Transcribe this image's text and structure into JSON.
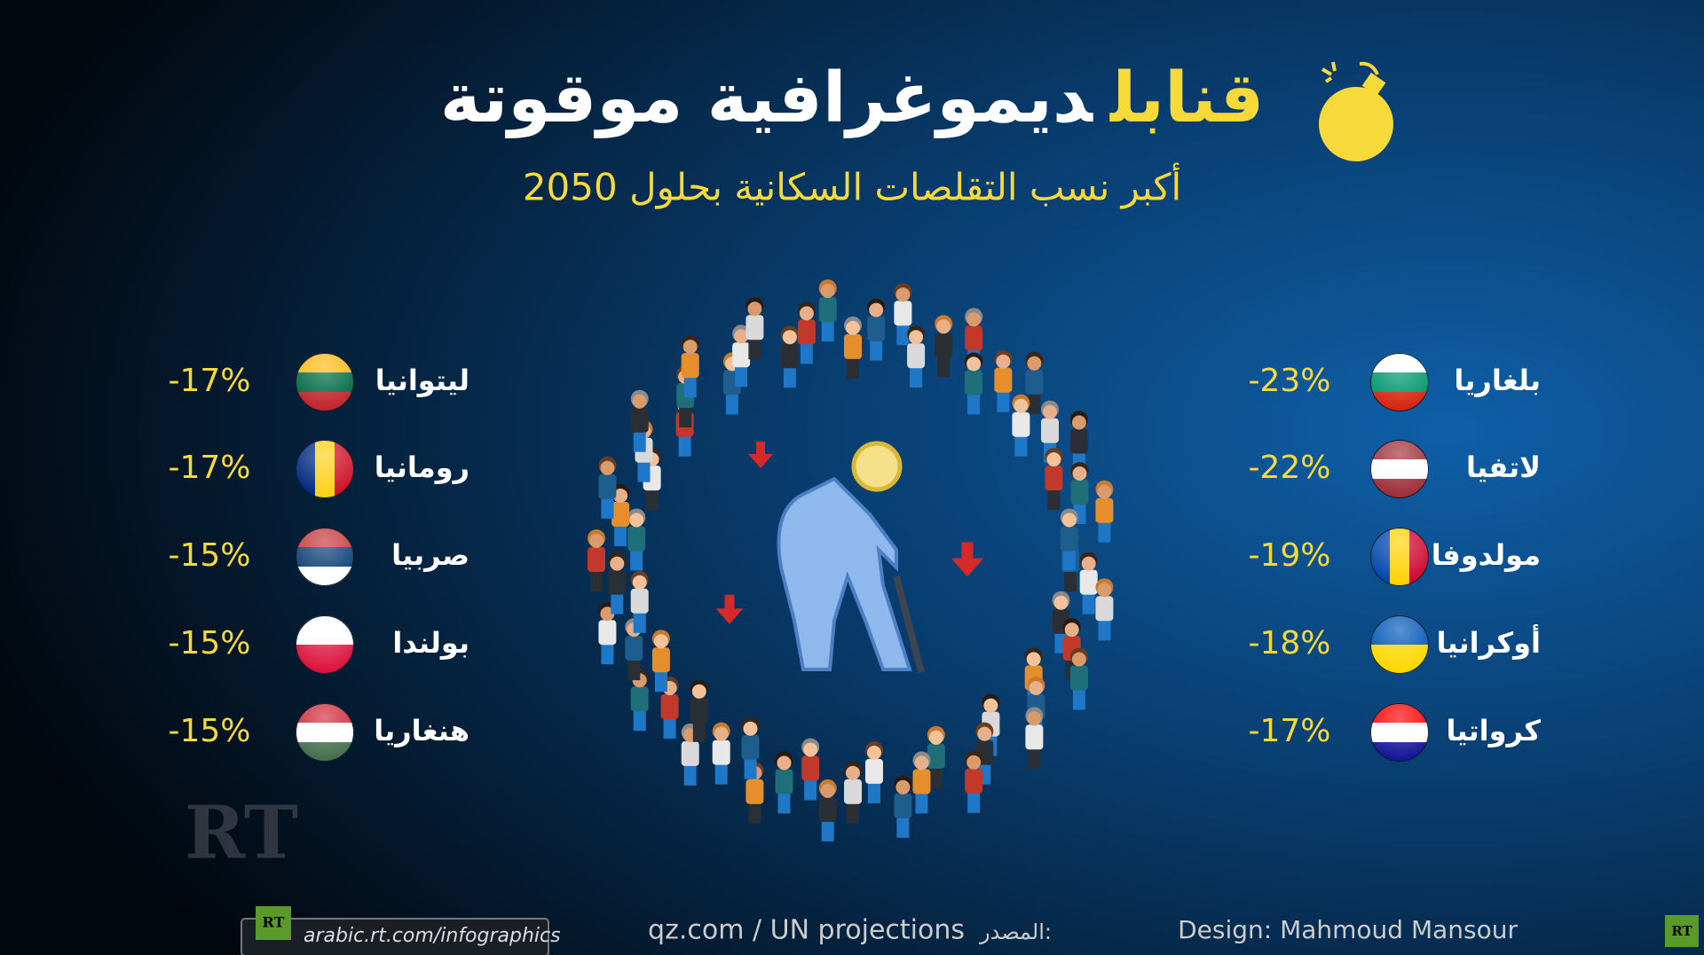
{
  "header": {
    "title_highlight": "قنابل",
    "title_rest": "ديموغرافية موقوتة",
    "subtitle": "أكبر نسب التقلصات السكانية بحلول 2050"
  },
  "right_list": [
    {
      "country": "بلغاريا",
      "change": "-23%"
    },
    {
      "country": "لاتفيا",
      "change": "-22%"
    },
    {
      "country": "مولدوفا",
      "change": "-19%"
    },
    {
      "country": "أوكرانيا",
      "change": "-18%"
    },
    {
      "country": "كرواتيا",
      "change": "-17%"
    }
  ],
  "left_list": [
    {
      "country": "ليتوانيا",
      "change": "-17%"
    },
    {
      "country": "رومانيا",
      "change": "-17%"
    },
    {
      "country": "صربيا",
      "change": "-15%"
    },
    {
      "country": "بولندا",
      "change": "-15%"
    },
    {
      "country": "هنغاريا",
      "change": "-15%"
    }
  ],
  "footer": {
    "logo": "RT",
    "site": "arabic.rt.com/infographics",
    "source_label": "المصدر:",
    "source": "qz.com / UN projections",
    "credit": "Design: Mahmoud Mansour"
  }
}
